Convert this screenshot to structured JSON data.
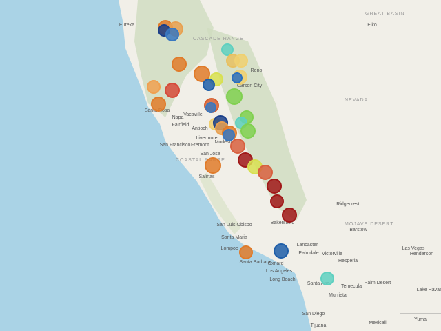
{
  "map": {
    "regions": [
      "GREAT BASIN",
      "NEVADA",
      "COASTAL RANGE",
      "MOJAVE DESERT",
      "CASCADE RANGE"
    ],
    "places": [
      "Eureka",
      "Reno",
      "Carson City",
      "Elko",
      "Napa",
      "Fairfield",
      "Vacaville",
      "Antioch",
      "San Francisco",
      "Fremont",
      "San Jose",
      "Salinas",
      "Santa Rosa",
      "Livermore",
      "Modesto",
      "San Luis Obispo",
      "Santa Maria",
      "Lompoc",
      "Santa Barbara",
      "Oxnard",
      "Los Angeles",
      "Long Beach",
      "Santa Ana",
      "Palmdale",
      "Lancaster",
      "Victorville",
      "Bakersfield",
      "San Diego",
      "Tijuana",
      "Mexicali",
      "Las Vegas",
      "Ridgecrest",
      "Barstow",
      "Hesperia",
      "Murrieta",
      "Palm Desert",
      "Temecula",
      "Yuma",
      "Henderson",
      "Lake Havasu"
    ]
  }
}
